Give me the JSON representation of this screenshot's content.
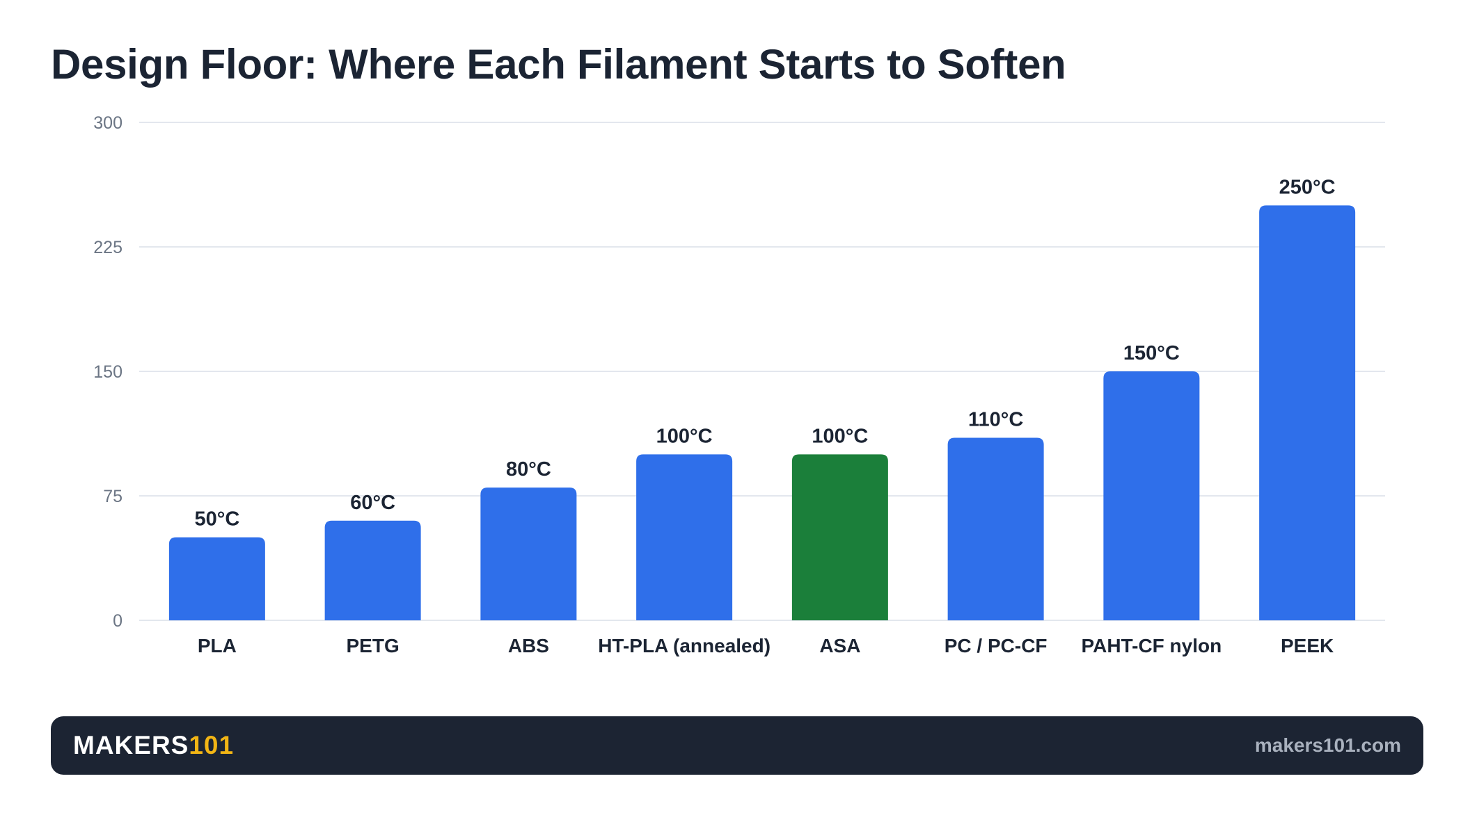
{
  "chart_data": {
    "type": "bar",
    "title": "Design Floor: Where Each Filament Starts to Soften",
    "xlabel": "",
    "ylabel": "",
    "categories": [
      "PLA",
      "PETG",
      "ABS",
      "HT-PLA (annealed)",
      "ASA",
      "PC / PC-CF",
      "PAHT-CF nylon",
      "PEEK"
    ],
    "values": [
      50,
      60,
      80,
      100,
      100,
      110,
      150,
      250
    ],
    "data_labels": [
      "50°C",
      "60°C",
      "80°C",
      "100°C",
      "100°C",
      "110°C",
      "150°C",
      "250°C"
    ],
    "ylim": [
      0,
      300
    ],
    "yticks": [
      0,
      75,
      150,
      225,
      300
    ],
    "grid": true,
    "legend": "none",
    "highlight_category": "ASA",
    "colors": {
      "bar": "#2f6fea",
      "highlight": "#1b7f3a",
      "grid": "#e3e7ee",
      "axis_text": "#6b7584",
      "label_text": "#1b2433"
    }
  },
  "footer": {
    "brand_main": "MAKERS",
    "brand_accent": "101",
    "site": "makers101.com",
    "colors": {
      "background": "#1c2433",
      "accent": "#f2b515"
    }
  }
}
